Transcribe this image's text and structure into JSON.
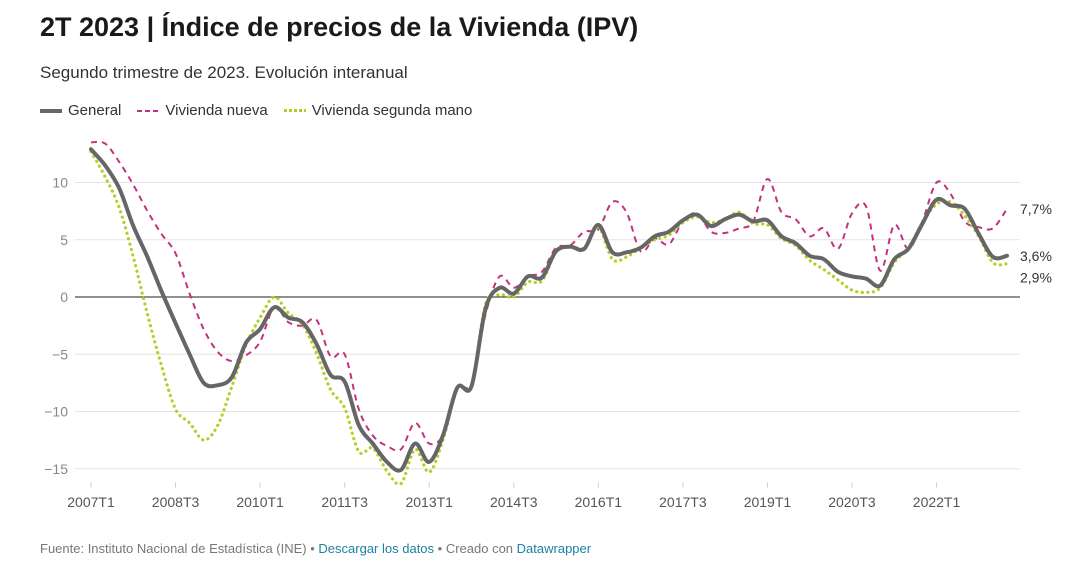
{
  "header": {
    "title": "2T 2023 | Índice de precios de la Vivienda (IPV)",
    "subtitle": "Segundo trimestre de 2023. Evolución interanual"
  },
  "legend": {
    "items": [
      {
        "label": "General",
        "color": "#666666"
      },
      {
        "label": "Vivienda nueva",
        "color": "#c4317e"
      },
      {
        "label": "Vivienda segunda mano",
        "color": "#b4cf23"
      }
    ]
  },
  "footer": {
    "source": "Fuente: Instituto Nacional de Estadística (INE)",
    "sep1": " • ",
    "download": "Descargar los datos",
    "sep2": " • Creado con ",
    "tool": "Datawrapper"
  },
  "chart_data": {
    "type": "line",
    "x_ticks": [
      "2007T1",
      "2008T3",
      "2010T1",
      "2011T3",
      "2013T1",
      "2014T3",
      "2016T1",
      "2017T3",
      "2019T1",
      "2020T3",
      "2022T1"
    ],
    "x_labels": [
      "2007T1",
      "2007T2",
      "2007T3",
      "2007T4",
      "2008T1",
      "2008T2",
      "2008T3",
      "2008T4",
      "2009T1",
      "2009T2",
      "2009T3",
      "2009T4",
      "2010T1",
      "2010T2",
      "2010T3",
      "2010T4",
      "2011T1",
      "2011T2",
      "2011T3",
      "2011T4",
      "2012T1",
      "2012T2",
      "2012T3",
      "2012T4",
      "2013T1",
      "2013T2",
      "2013T3",
      "2013T4",
      "2014T1",
      "2014T2",
      "2014T3",
      "2014T4",
      "2015T1",
      "2015T2",
      "2015T3",
      "2015T4",
      "2016T1",
      "2016T2",
      "2016T3",
      "2016T4",
      "2017T1",
      "2017T2",
      "2017T3",
      "2017T4",
      "2018T1",
      "2018T2",
      "2018T3",
      "2018T4",
      "2019T1",
      "2019T2",
      "2019T3",
      "2019T4",
      "2020T1",
      "2020T2",
      "2020T3",
      "2020T4",
      "2021T1",
      "2021T2",
      "2021T3",
      "2021T4",
      "2022T1",
      "2022T2",
      "2022T3",
      "2022T4",
      "2023T1",
      "2023T2"
    ],
    "y_ticks": [
      10,
      5,
      0,
      -5,
      -10,
      -15
    ],
    "y_tick_labels": [
      "10",
      "5",
      "0",
      "−5",
      "−10",
      "−15"
    ],
    "ylim": [
      -16.5,
      13.5
    ],
    "grid": true,
    "legend_position": "top-left",
    "series": [
      {
        "name": "General",
        "color": "#666666",
        "style": "solid",
        "end_label": "3,6%",
        "values": [
          12.9,
          11.5,
          9.5,
          6.2,
          3.5,
          0.5,
          -2.3,
          -5.0,
          -7.5,
          -7.7,
          -7.0,
          -4.0,
          -2.8,
          -0.9,
          -1.8,
          -2.2,
          -4.1,
          -6.8,
          -7.4,
          -11.2,
          -12.8,
          -14.4,
          -15.1,
          -12.8,
          -14.4,
          -12.0,
          -7.9,
          -7.8,
          -1.0,
          0.8,
          0.3,
          1.8,
          1.7,
          4.0,
          4.4,
          4.2,
          6.3,
          3.9,
          3.9,
          4.3,
          5.3,
          5.7,
          6.7,
          7.2,
          6.2,
          6.8,
          7.2,
          6.6,
          6.7,
          5.3,
          4.7,
          3.6,
          3.3,
          2.2,
          1.8,
          1.6,
          1.0,
          3.3,
          4.2,
          6.4,
          8.5,
          8.0,
          7.7,
          5.5,
          3.5,
          3.6
        ]
      },
      {
        "name": "Vivienda nueva",
        "color": "#c4317e",
        "style": "dashed",
        "end_label": "7,7%",
        "values": [
          13.5,
          13.4,
          11.8,
          9.8,
          7.5,
          5.5,
          3.8,
          0.3,
          -2.8,
          -4.8,
          -5.6,
          -5.1,
          -3.9,
          -0.9,
          -2.2,
          -2.5,
          -2.0,
          -5.2,
          -5.0,
          -9.8,
          -12.1,
          -13.0,
          -13.3,
          -11.0,
          -12.8,
          -12.0,
          -7.9,
          -7.6,
          -1.5,
          1.8,
          0.8,
          1.8,
          2.2,
          4.3,
          4.5,
          5.7,
          5.9,
          8.3,
          7.4,
          4.0,
          5.1,
          4.6,
          6.6,
          7.3,
          5.7,
          5.6,
          6.0,
          6.6,
          10.3,
          7.4,
          6.8,
          5.3,
          6.0,
          4.2,
          7.3,
          7.9,
          2.3,
          6.3,
          4.2,
          6.6,
          10.0,
          9.0,
          6.6,
          6.1,
          6.0,
          7.7
        ]
      },
      {
        "name": "Vivienda segunda mano",
        "color": "#b4cf23",
        "style": "dotted",
        "end_label": "2,9%",
        "values": [
          12.7,
          10.5,
          7.8,
          3.5,
          -1.5,
          -6.0,
          -9.8,
          -11.0,
          -12.5,
          -11.2,
          -7.8,
          -4.2,
          -1.8,
          0.0,
          -1.4,
          -2.4,
          -4.9,
          -8.1,
          -9.7,
          -13.5,
          -13.2,
          -15.2,
          -16.3,
          -13.3,
          -15.3,
          -12.4,
          -8.0,
          -7.7,
          -0.6,
          0.2,
          0.0,
          1.3,
          1.4,
          3.9,
          4.4,
          4.3,
          6.1,
          3.3,
          3.5,
          4.3,
          5.0,
          5.4,
          6.5,
          7.0,
          6.5,
          6.8,
          7.4,
          6.4,
          6.3,
          5.1,
          4.5,
          3.2,
          2.4,
          1.5,
          0.6,
          0.4,
          0.8,
          3.0,
          4.3,
          6.5,
          8.1,
          8.3,
          7.1,
          5.3,
          3.0,
          2.9
        ]
      }
    ]
  }
}
